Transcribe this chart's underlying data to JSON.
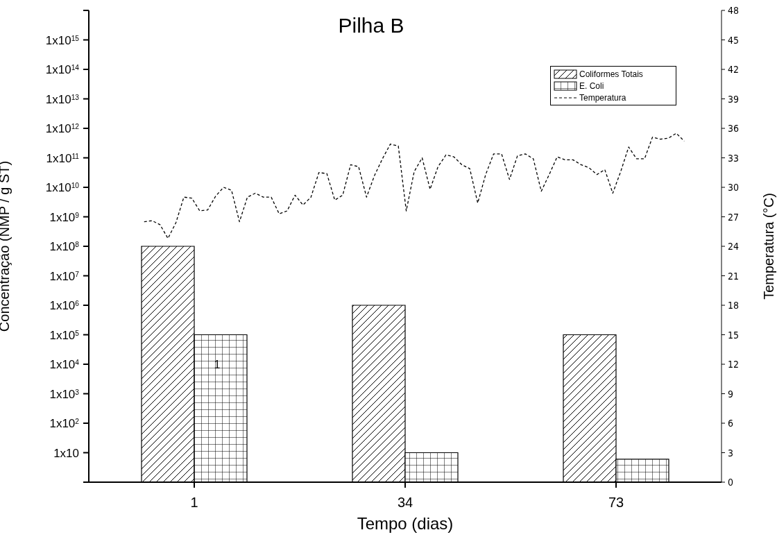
{
  "chart_data": [
    {
      "type": "bar",
      "title": "Pilha B",
      "xlabel": "Tempo (dias)",
      "ylabel": "Concentração (NMP / g ST)",
      "categories": [
        "1",
        "34",
        "73"
      ],
      "log": "y",
      "ylim": [
        1,
        1e+16
      ],
      "yticks": [
        {
          "value": 1,
          "label": null
        },
        {
          "value": 10,
          "label": "1x10"
        },
        {
          "value": 100,
          "label": "1x10$^{2}$"
        },
        {
          "value": 1000,
          "label": "1x10$^{3}$"
        },
        {
          "value": 10000,
          "label": "1x10$^{4}$"
        },
        {
          "value": 100000,
          "label": "1x10$^{5}$"
        },
        {
          "value": 1000000,
          "label": "1x10$^{6}$"
        },
        {
          "value": 10000000,
          "label": "1x10$^{7}$"
        },
        {
          "value": 100000000,
          "label": "1x10$^{8}$"
        },
        {
          "value": 1000000000,
          "label": "1x10$^{9}$"
        },
        {
          "value": 10000000000,
          "label": "1x10$^{10}$"
        },
        {
          "value": 100000000000,
          "label": "1x10$^{11}$"
        },
        {
          "value": 1000000000000,
          "label": "1x10$^{12}$"
        },
        {
          "value": 10000000000000,
          "label": "1x10$^{13}$"
        },
        {
          "value": 100000000000000,
          "label": "1x10$^{14}$"
        },
        {
          "value": 1000000000000000,
          "label": "1x10$^{15}$"
        },
        {
          "value": 1e+16,
          "label": null
        }
      ],
      "legend": "top right",
      "grid": false,
      "annotations": [
        {
          "text": "1",
          "x": "1",
          "y": 10000
        }
      ],
      "series": [
        {
          "name": "Coliformes Totais",
          "color": "#000000",
          "values": [
            100000000,
            1000000,
            100000
          ]
        },
        {
          "name": "E. Coli",
          "color": "#000000",
          "values": [
            100000,
            10,
            6
          ]
        }
      ]
    },
    {
      "type": "line",
      "ylabel": "Temperatura (°C)",
      "tick_labels": "y",
      "categories": [
        null,
        null,
        null,
        null,
        null,
        null,
        null,
        null,
        null,
        null,
        null,
        null,
        null,
        null,
        null,
        null,
        null,
        null,
        null,
        null,
        null,
        null,
        null,
        null,
        null,
        null,
        null,
        null,
        null,
        null,
        null,
        null,
        null,
        null,
        null,
        null,
        null,
        null,
        null,
        null,
        null,
        null,
        null,
        null,
        null,
        null,
        null,
        null,
        null,
        null,
        null,
        null,
        null,
        null,
        null,
        null,
        null,
        null,
        null,
        null,
        null,
        null,
        null,
        null,
        null,
        null,
        null,
        null,
        null
      ],
      "ylim": [
        0,
        48
      ],
      "yticks": [
        0,
        3,
        6,
        9,
        12,
        15,
        18,
        21,
        24,
        27,
        30,
        33,
        36,
        39,
        42,
        45,
        48
      ],
      "line_style": "dashed",
      "marker": "none",
      "series": [
        {
          "name": "Temperatura",
          "color": "#000000",
          "values": [
            26.5,
            26.6,
            26.2,
            24.8,
            26.4,
            29.0,
            28.9,
            27.6,
            27.7,
            29.1,
            30.0,
            29.7,
            26.5,
            29.0,
            29.4,
            29.0,
            29.0,
            27.3,
            27.6,
            29.2,
            28.2,
            29.0,
            31.5,
            31.4,
            28.7,
            29.2,
            32.3,
            32.1,
            29.0,
            31.2,
            32.9,
            34.4,
            34.2,
            27.6,
            31.6,
            33.0,
            29.8,
            32.1,
            33.3,
            33.1,
            32.3,
            31.9,
            28.4,
            31.3,
            33.4,
            33.4,
            30.8,
            33.2,
            33.4,
            32.9,
            29.6,
            31.3,
            33.1,
            32.8,
            32.8,
            32.3,
            32.0,
            31.3,
            31.8,
            29.4,
            31.6,
            34.1,
            32.9,
            32.9,
            35.1,
            34.9,
            35.0,
            35.5,
            34.7
          ]
        }
      ]
    }
  ]
}
